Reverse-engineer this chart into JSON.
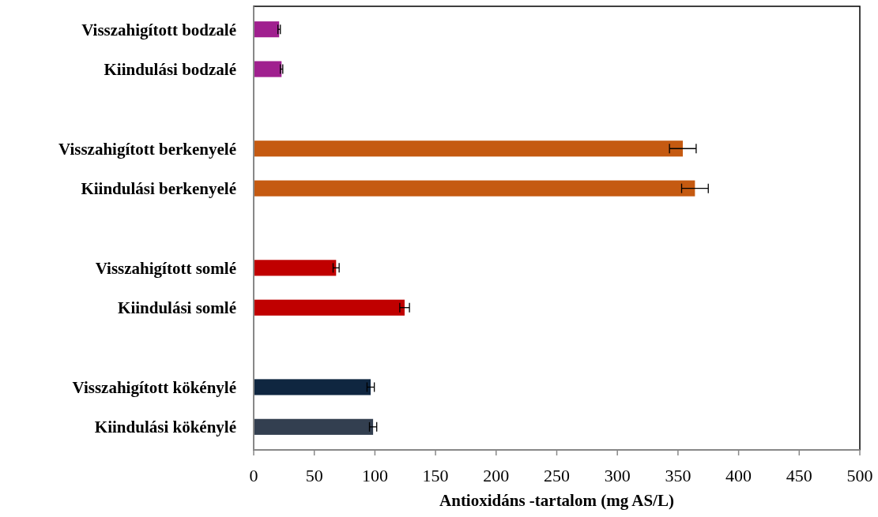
{
  "chart_data": {
    "type": "bar",
    "orientation": "horizontal",
    "xlabel": "Antioxidáns -tartalom (mg AS/L)",
    "categories": [
      "Visszahigított bodzalé",
      "Kiindulási bodzalé",
      null,
      "Visszahigított berkenyelé",
      "Kiindulási berkenyelé",
      null,
      "Visszahigított somlé",
      "Kiindulási somlé",
      null,
      "Visszahigított kökénylé",
      "Kiindulási kökénylé"
    ],
    "values": [
      21,
      23,
      null,
      354,
      364,
      null,
      68,
      124.5,
      null,
      96.5,
      98.5
    ],
    "errors": [
      1,
      1,
      null,
      11,
      11,
      null,
      2.5,
      4,
      null,
      3,
      3
    ],
    "colors": [
      "#a0208f",
      "#a0208f",
      null,
      "#c55a11",
      "#c55a11",
      null,
      "#c00000",
      "#c00000",
      null,
      "#0f2640",
      "#333f50"
    ],
    "xlim": [
      0,
      500
    ],
    "xticks": [
      0,
      50,
      100,
      150,
      200,
      250,
      300,
      350,
      400,
      450,
      500
    ],
    "grid": false
  }
}
